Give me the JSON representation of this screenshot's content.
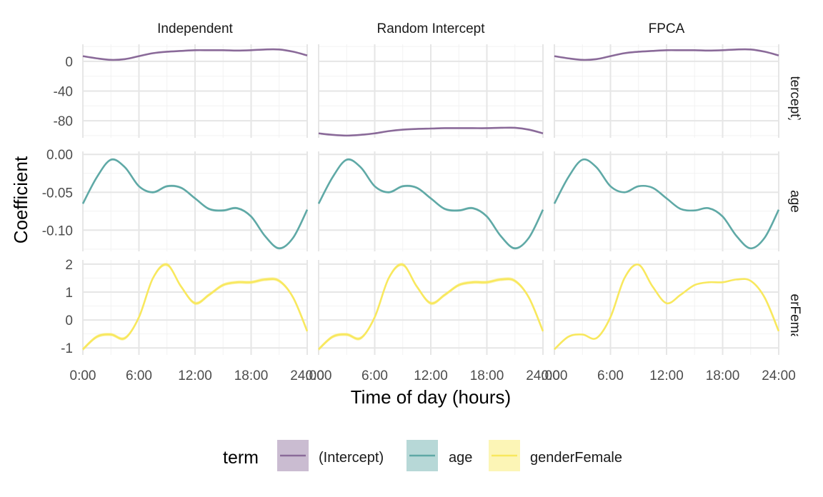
{
  "chart_data": {
    "type": "line",
    "xlabel": "Time of day (hours)",
    "ylabel": "Coefficient",
    "x_ticks": [
      "0:00",
      "6:00",
      "12:00",
      "18:00",
      "24:00"
    ],
    "x_tick_values": [
      0,
      6,
      12,
      18,
      24
    ],
    "xlim": [
      0,
      24
    ],
    "grid": true,
    "legend": {
      "position": "bottom",
      "title": "term",
      "entries": [
        "(Intercept)",
        "age",
        "genderFemale"
      ]
    },
    "colors": {
      "(Intercept)": "#8a6a99",
      "age": "#5fa9a6",
      "genderFemale": "#f8e85e",
      "grid_major": "#e6e6e6",
      "grid_minor": "#f2f2f2",
      "text": "#4d4d4d"
    },
    "columns": [
      "Independent",
      "Random Intercept",
      "FPCA"
    ],
    "rows": [
      {
        "label": "(Intercept)",
        "term": "(Intercept)",
        "ylim": [
          -103,
          23
        ],
        "y_ticks": [
          0,
          -40,
          -80
        ],
        "y_tick_labels": [
          "0",
          "-40",
          "-80"
        ]
      },
      {
        "label": "age",
        "term": "age",
        "ylim": [
          -0.128,
          0.004
        ],
        "y_ticks": [
          0,
          -0.05,
          -0.1
        ],
        "y_tick_labels": [
          "0.00",
          "-0.05",
          "-0.10"
        ]
      },
      {
        "label": "genderFemale",
        "term": "genderFemale",
        "ylim": [
          -1.25,
          2.15
        ],
        "y_ticks": [
          2,
          1,
          0,
          -1
        ],
        "y_tick_labels": [
          "2",
          "1",
          "0",
          "-1"
        ]
      }
    ],
    "x": [
      0,
      1.5,
      3,
      4.5,
      6,
      7.5,
      9,
      10.5,
      12,
      13.5,
      15,
      16.5,
      18,
      19.5,
      21,
      22.5,
      24
    ],
    "series": [
      {
        "name": "(Intercept)",
        "panel": "Independent",
        "values": [
          7,
          4,
          2,
          3,
          7,
          11,
          13,
          14,
          15,
          15,
          15,
          14.5,
          15,
          16,
          16,
          13,
          8
        ],
        "band": 0.8
      },
      {
        "name": "(Intercept)",
        "panel": "Random Intercept",
        "values": [
          -97,
          -99,
          -100,
          -99,
          -97,
          -94,
          -92,
          -91,
          -90.5,
          -90,
          -90,
          -90,
          -90,
          -89.5,
          -89.5,
          -92,
          -97
        ],
        "band": 0.8
      },
      {
        "name": "(Intercept)",
        "panel": "FPCA",
        "values": [
          7,
          4,
          2,
          3,
          7,
          11,
          13,
          14,
          15,
          15,
          15,
          14.5,
          15,
          16,
          16,
          13,
          8
        ],
        "band": 0
      },
      {
        "name": "age",
        "panel": "Independent",
        "values": [
          -0.065,
          -0.03,
          -0.007,
          -0.017,
          -0.042,
          -0.05,
          -0.042,
          -0.044,
          -0.058,
          -0.072,
          -0.074,
          -0.071,
          -0.082,
          -0.108,
          -0.124,
          -0.11,
          -0.073
        ],
        "band": 0.0015
      },
      {
        "name": "age",
        "panel": "Random Intercept",
        "values": [
          -0.065,
          -0.03,
          -0.007,
          -0.017,
          -0.042,
          -0.05,
          -0.042,
          -0.044,
          -0.058,
          -0.072,
          -0.074,
          -0.071,
          -0.082,
          -0.108,
          -0.124,
          -0.11,
          -0.073
        ],
        "band": 0.0015
      },
      {
        "name": "age",
        "panel": "FPCA",
        "values": [
          -0.065,
          -0.03,
          -0.007,
          -0.017,
          -0.042,
          -0.05,
          -0.042,
          -0.044,
          -0.058,
          -0.072,
          -0.074,
          -0.071,
          -0.082,
          -0.108,
          -0.124,
          -0.11,
          -0.073
        ],
        "band": 0
      },
      {
        "name": "genderFemale",
        "panel": "Independent",
        "values": [
          -1.05,
          -0.6,
          -0.52,
          -0.65,
          0.1,
          1.5,
          1.98,
          1.2,
          0.6,
          0.9,
          1.25,
          1.35,
          1.35,
          1.45,
          1.4,
          0.8,
          -0.4
        ],
        "band": 0.06
      },
      {
        "name": "genderFemale",
        "panel": "Random Intercept",
        "values": [
          -1.05,
          -0.6,
          -0.52,
          -0.65,
          0.1,
          1.5,
          1.98,
          1.2,
          0.6,
          0.9,
          1.25,
          1.35,
          1.35,
          1.45,
          1.4,
          0.8,
          -0.4
        ],
        "band": 0.06
      },
      {
        "name": "genderFemale",
        "panel": "FPCA",
        "values": [
          -1.05,
          -0.6,
          -0.52,
          -0.65,
          0.1,
          1.5,
          1.98,
          1.2,
          0.6,
          0.9,
          1.25,
          1.35,
          1.35,
          1.45,
          1.4,
          0.8,
          -0.4
        ],
        "band": 0
      }
    ]
  }
}
